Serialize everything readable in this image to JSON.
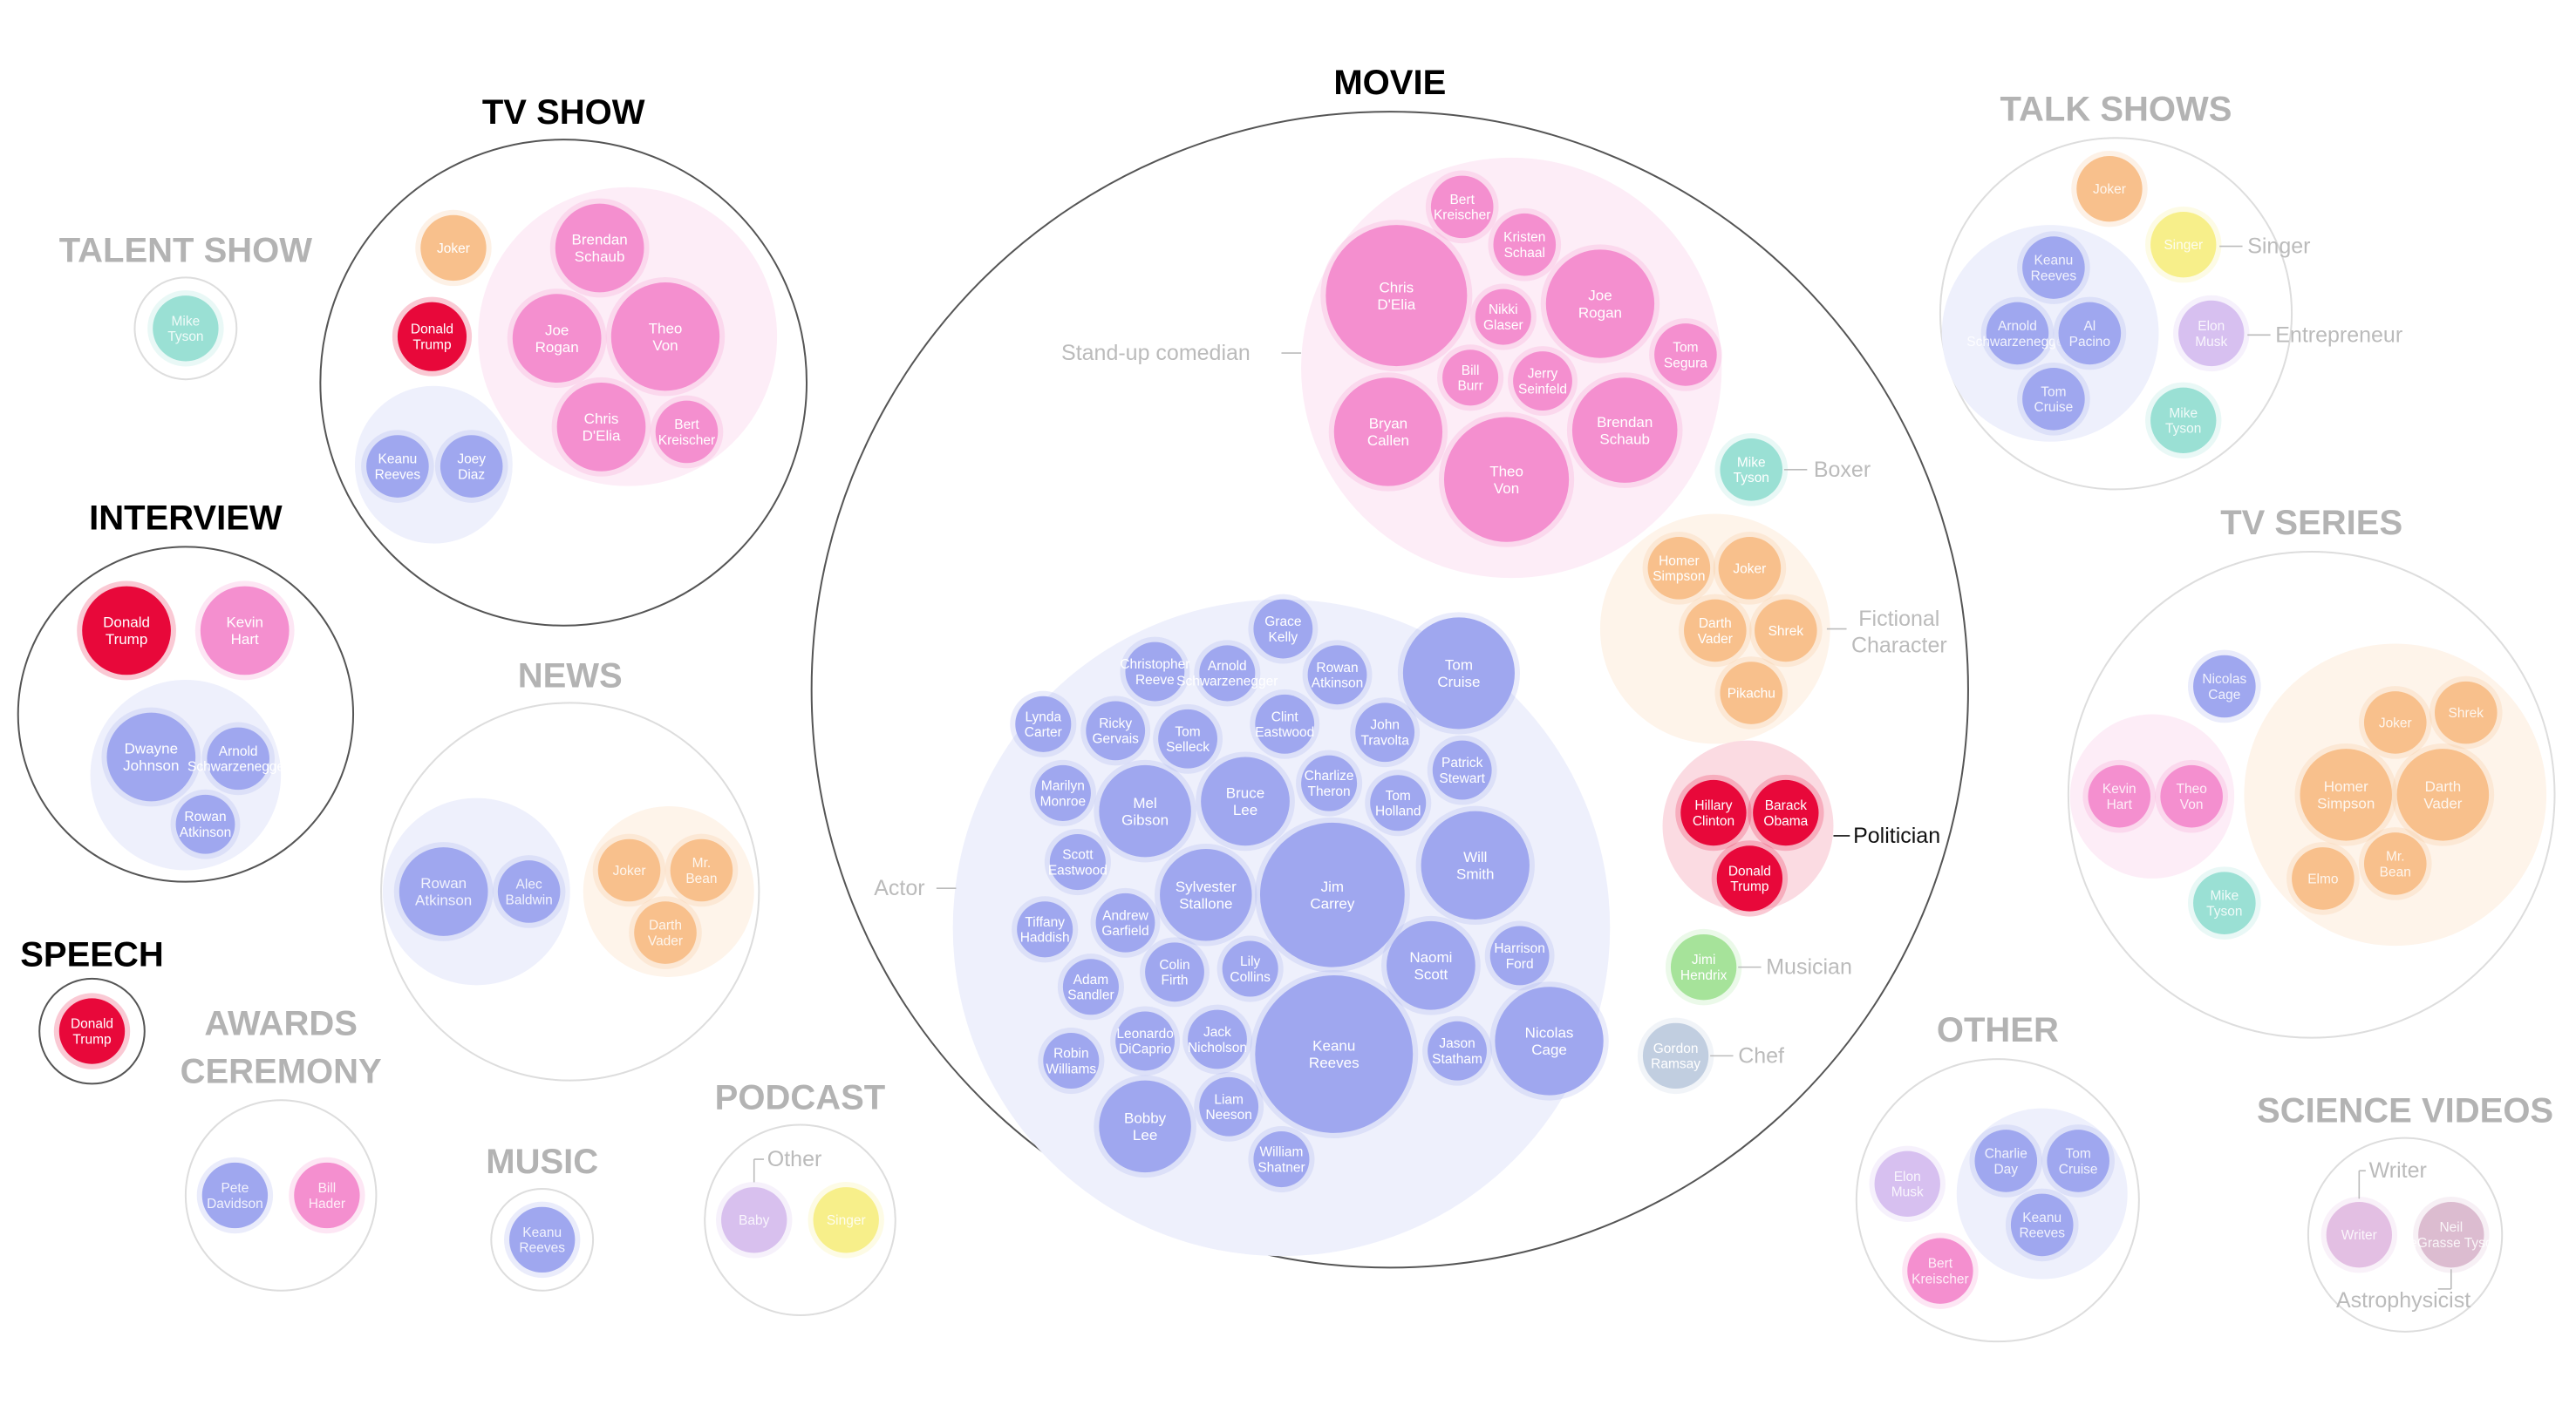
{
  "colors": {
    "actor": "#9fa7ef",
    "comedian": "#f48fcf",
    "fictional": "#f8c08c",
    "politician": "#e8083a",
    "boxer": "#9ae0d4",
    "singer": "#f7ef8a",
    "musician": "#a6e39a",
    "chef": "#c1cee0",
    "entrepreneur": "#d7c0f0",
    "other": "#d8c0ee",
    "writer": "#e3bfe3",
    "astro": "#dcbcd0",
    "actor_bg": "#eef0fc",
    "comedian_bg": "#fdedf7",
    "fictional_bg": "#fef4ea",
    "politician_bg": "#fbdbe2",
    "active_title": "#000000",
    "faded_title": "#b3b3b3",
    "active_stroke": "#555555",
    "faded_stroke": "#dddddd",
    "faded_label": "#bbbbbb",
    "active_label": "#111111"
  },
  "categories": [
    {
      "id": "movie",
      "title": "MOVIE",
      "active": true
    },
    {
      "id": "tv-show",
      "title": "TV SHOW",
      "active": true
    },
    {
      "id": "talent-show",
      "title": "TALENT SHOW",
      "active": false
    },
    {
      "id": "interview",
      "title": "INTERVIEW",
      "active": true
    },
    {
      "id": "speech",
      "title": "SPEECH",
      "active": true
    },
    {
      "id": "news",
      "title": "NEWS",
      "active": false
    },
    {
      "id": "awards-ceremony",
      "title": "AWARDS CEREMONY",
      "active": false
    },
    {
      "id": "music",
      "title": "MUSIC",
      "active": false
    },
    {
      "id": "podcast",
      "title": "PODCAST",
      "active": false
    },
    {
      "id": "talk-shows",
      "title": "TALK SHOWS",
      "active": false
    },
    {
      "id": "tv-series",
      "title": "TV SERIES",
      "active": false
    },
    {
      "id": "other",
      "title": "OTHER",
      "active": false
    },
    {
      "id": "science-videos",
      "title": "SCIENCE VIDEOS",
      "active": false
    }
  ],
  "role_labels": [
    {
      "id": "stand-up-comedian",
      "text": "Stand-up comedian",
      "active": false
    },
    {
      "id": "actor",
      "text": "Actor",
      "active": false
    },
    {
      "id": "boxer",
      "text": "Boxer",
      "active": false
    },
    {
      "id": "fictional-character",
      "text": "Fictional Character",
      "active": false
    },
    {
      "id": "politician",
      "text": "Politician",
      "active": true
    },
    {
      "id": "musician",
      "text": "Musician",
      "active": false
    },
    {
      "id": "chef",
      "text": "Chef",
      "active": false
    },
    {
      "id": "singer",
      "text": "Singer",
      "active": false
    },
    {
      "id": "entrepreneur",
      "text": "Entrepreneur",
      "active": false
    },
    {
      "id": "podcast-other",
      "text": "Other",
      "active": false
    },
    {
      "id": "writer",
      "text": "Writer",
      "active": false
    },
    {
      "id": "astrophysicist",
      "text": "Astrophysicist",
      "active": false
    }
  ],
  "groups": [
    {
      "category": "movie",
      "role": "comedian",
      "people": [
        {
          "name": "Bert Kreischer",
          "videos": 1
        },
        {
          "name": "Kristen Schaal",
          "videos": 1
        },
        {
          "name": "Chris D'Elia",
          "videos": 6
        },
        {
          "name": "Joe Rogan",
          "videos": 4
        },
        {
          "name": "Nikki Glaser",
          "videos": 1
        },
        {
          "name": "Tom Segura",
          "videos": 1
        },
        {
          "name": "Bill Burr",
          "videos": 1
        },
        {
          "name": "Jerry Seinfeld",
          "videos": 1
        },
        {
          "name": "Bryan Callen",
          "videos": 4
        },
        {
          "name": "Brendan Schaub",
          "videos": 4
        },
        {
          "name": "Theo Von",
          "videos": 5
        }
      ]
    },
    {
      "category": "movie",
      "role": "actor",
      "people": [
        {
          "name": "Grace Kelly",
          "videos": 1
        },
        {
          "name": "Christopher Reeve",
          "videos": 1
        },
        {
          "name": "Arnold Schwarzenegger",
          "videos": 1
        },
        {
          "name": "Rowan Atkinson",
          "videos": 1
        },
        {
          "name": "Tom Cruise",
          "videos": 4
        },
        {
          "name": "Lynda Carter",
          "videos": 1
        },
        {
          "name": "Ricky Gervais",
          "videos": 1
        },
        {
          "name": "Tom Selleck",
          "videos": 1
        },
        {
          "name": "Clint Eastwood",
          "videos": 1
        },
        {
          "name": "John Travolta",
          "videos": 1
        },
        {
          "name": "Marilyn Monroe",
          "videos": 1
        },
        {
          "name": "Mel Gibson",
          "videos": 3
        },
        {
          "name": "Bruce Lee",
          "videos": 3
        },
        {
          "name": "Charlize Theron",
          "videos": 1
        },
        {
          "name": "Patrick Stewart",
          "videos": 1
        },
        {
          "name": "Tom Holland",
          "videos": 1
        },
        {
          "name": "Scott Eastwood",
          "videos": 1
        },
        {
          "name": "Jim Carrey",
          "videos": 7
        },
        {
          "name": "Will Smith",
          "videos": 4
        },
        {
          "name": "Tiffany Haddish",
          "videos": 1
        },
        {
          "name": "Andrew Garfield",
          "videos": 1
        },
        {
          "name": "Sylvester Stallone",
          "videos": 2
        },
        {
          "name": "Lily Collins",
          "videos": 1
        },
        {
          "name": "Naomi Scott",
          "videos": 1
        },
        {
          "name": "Harrison Ford",
          "videos": 2
        },
        {
          "name": "Adam Sandler",
          "videos": 1
        },
        {
          "name": "Colin Firth",
          "videos": 1
        },
        {
          "name": "Leonardo DiCaprio",
          "videos": 1
        },
        {
          "name": "Jack Nicholson",
          "videos": 1
        },
        {
          "name": "Keanu Reeves",
          "videos": 8
        },
        {
          "name": "Jason Statham",
          "videos": 1
        },
        {
          "name": "Nicolas Cage",
          "videos": 4
        },
        {
          "name": "Robin Williams",
          "videos": 1
        },
        {
          "name": "Liam Neeson",
          "videos": 1
        },
        {
          "name": "Bobby Lee",
          "videos": 3
        },
        {
          "name": "William Shatner",
          "videos": 1
        }
      ]
    },
    {
      "category": "movie",
      "role": "boxer",
      "people": [
        {
          "name": "Mike Tyson",
          "videos": 1
        }
      ]
    },
    {
      "category": "movie",
      "role": "fictional",
      "people": [
        {
          "name": "Homer Simpson",
          "videos": 1
        },
        {
          "name": "Joker",
          "videos": 1
        },
        {
          "name": "Darth Vader",
          "videos": 1
        },
        {
          "name": "Shrek",
          "videos": 1
        },
        {
          "name": "Pikachu",
          "videos": 1
        }
      ]
    },
    {
      "category": "movie",
      "role": "politician",
      "people": [
        {
          "name": "Hillary Clinton",
          "videos": 1
        },
        {
          "name": "Barack Obama",
          "videos": 1
        },
        {
          "name": "Donald Trump",
          "videos": 1
        }
      ]
    },
    {
      "category": "movie",
      "role": "musician",
      "people": [
        {
          "name": "Jimi Hendrix",
          "videos": 1
        }
      ]
    },
    {
      "category": "movie",
      "role": "chef",
      "people": [
        {
          "name": "Gordon Ramsay",
          "videos": 1
        }
      ]
    },
    {
      "category": "tv-show",
      "role": "fictional",
      "people": [
        {
          "name": "Joker",
          "videos": 1
        }
      ]
    },
    {
      "category": "tv-show",
      "role": "politician",
      "people": [
        {
          "name": "Donald Trump",
          "videos": 1
        }
      ]
    },
    {
      "category": "tv-show",
      "role": "comedian",
      "people": [
        {
          "name": "Brendan Schaub",
          "videos": 1
        },
        {
          "name": "Joe Rogan",
          "videos": 1
        },
        {
          "name": "Theo Von",
          "videos": 1
        },
        {
          "name": "Chris D'Elia",
          "videos": 1
        },
        {
          "name": "Bert Kreischer",
          "videos": 1
        }
      ]
    },
    {
      "category": "tv-show",
      "role": "actor",
      "people": [
        {
          "name": "Keanu Reeves",
          "videos": 1
        },
        {
          "name": "Joey Diaz",
          "videos": 1
        }
      ]
    },
    {
      "category": "talent-show",
      "role": "boxer",
      "people": [
        {
          "name": "Mike Tyson",
          "videos": 1
        }
      ]
    },
    {
      "category": "interview",
      "role": "politician",
      "people": [
        {
          "name": "Donald Trump",
          "videos": 1
        }
      ]
    },
    {
      "category": "interview",
      "role": "comedian",
      "people": [
        {
          "name": "Kevin Hart",
          "videos": 1
        }
      ]
    },
    {
      "category": "interview",
      "role": "actor",
      "people": [
        {
          "name": "Dwayne Johnson",
          "videos": 1
        },
        {
          "name": "Arnold Schwarzenegger",
          "videos": 1
        },
        {
          "name": "Rowan Atkinson",
          "videos": 1
        }
      ]
    },
    {
      "category": "speech",
      "role": "politician",
      "people": [
        {
          "name": "Donald Trump",
          "videos": 1
        }
      ]
    },
    {
      "category": "news",
      "role": "actor",
      "people": [
        {
          "name": "Rowan Atkinson",
          "videos": 1
        },
        {
          "name": "Alec Baldwin",
          "videos": 1
        }
      ]
    },
    {
      "category": "news",
      "role": "fictional",
      "people": [
        {
          "name": "Joker",
          "videos": 1
        },
        {
          "name": "Mr. Bean",
          "videos": 1
        },
        {
          "name": "Darth Vader",
          "videos": 1
        }
      ]
    },
    {
      "category": "awards-ceremony",
      "role": "actor",
      "people": [
        {
          "name": "Pete Davidson",
          "videos": 1
        }
      ]
    },
    {
      "category": "awards-ceremony",
      "role": "comedian",
      "people": [
        {
          "name": "Bill Hader",
          "videos": 1
        }
      ]
    },
    {
      "category": "music",
      "role": "actor",
      "people": [
        {
          "name": "Keanu Reeves",
          "videos": 1
        }
      ]
    },
    {
      "category": "podcast",
      "role": "other",
      "people": [
        {
          "name": "Baby",
          "videos": 1
        }
      ]
    },
    {
      "category": "podcast",
      "role": "singer",
      "people": [
        {
          "name": "Singer",
          "videos": 1
        }
      ]
    },
    {
      "category": "talk-shows",
      "role": "fictional",
      "people": [
        {
          "name": "Joker",
          "videos": 1
        }
      ]
    },
    {
      "category": "talk-shows",
      "role": "singer",
      "people": [
        {
          "name": "Singer",
          "videos": 1
        }
      ]
    },
    {
      "category": "talk-shows",
      "role": "actor",
      "people": [
        {
          "name": "Keanu Reeves",
          "videos": 1
        },
        {
          "name": "Arnold Schwarzenegger",
          "videos": 1
        },
        {
          "name": "Al Pacino",
          "videos": 1
        },
        {
          "name": "Tom Cruise",
          "videos": 1
        }
      ]
    },
    {
      "category": "talk-shows",
      "role": "entrepreneur",
      "people": [
        {
          "name": "Elon Musk",
          "videos": 1
        }
      ]
    },
    {
      "category": "talk-shows",
      "role": "boxer",
      "people": [
        {
          "name": "Mike Tyson",
          "videos": 1
        }
      ]
    },
    {
      "category": "tv-series",
      "role": "actor",
      "people": [
        {
          "name": "Nicolas Cage",
          "videos": 1
        }
      ]
    },
    {
      "category": "tv-series",
      "role": "comedian",
      "people": [
        {
          "name": "Kevin Hart",
          "videos": 1
        },
        {
          "name": "Theo Von",
          "videos": 1
        }
      ]
    },
    {
      "category": "tv-series",
      "role": "boxer",
      "people": [
        {
          "name": "Mike Tyson",
          "videos": 1
        }
      ]
    },
    {
      "category": "tv-series",
      "role": "fictional",
      "people": [
        {
          "name": "Joker",
          "videos": 1
        },
        {
          "name": "Shrek",
          "videos": 1
        },
        {
          "name": "Homer Simpson",
          "videos": 1
        },
        {
          "name": "Darth Vader",
          "videos": 1
        },
        {
          "name": "Elmo",
          "videos": 1
        },
        {
          "name": "Mr. Bean",
          "videos": 1
        }
      ]
    },
    {
      "category": "other",
      "role": "entrepreneur",
      "people": [
        {
          "name": "Elon Musk",
          "videos": 1
        }
      ]
    },
    {
      "category": "other",
      "role": "comedian",
      "people": [
        {
          "name": "Bert Kreischer",
          "videos": 1
        }
      ]
    },
    {
      "category": "other",
      "role": "actor",
      "people": [
        {
          "name": "Charlie Day",
          "videos": 1
        },
        {
          "name": "Tom Cruise",
          "videos": 1
        },
        {
          "name": "Keanu Reeves",
          "videos": 1
        }
      ]
    },
    {
      "category": "science-videos",
      "role": "writer",
      "people": [
        {
          "name": "Writer",
          "videos": 1
        }
      ]
    },
    {
      "category": "science-videos",
      "role": "astro",
      "people": [
        {
          "name": "Neil deGrasse Tyson",
          "videos": 1
        }
      ]
    }
  ]
}
